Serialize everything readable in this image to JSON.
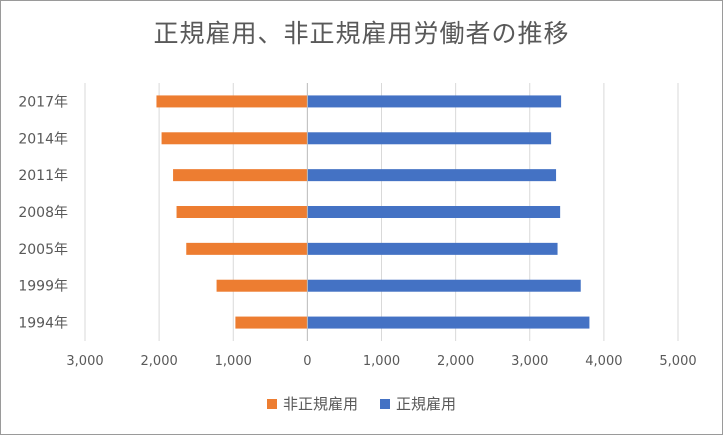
{
  "chart_data": {
    "type": "bar",
    "orientation": "horizontal-diverging",
    "title": "正規雇用、非正規雇用労働者の推移",
    "categories": [
      "2017年",
      "2014年",
      "2011年",
      "2008年",
      "2005年",
      "1999年",
      "1994年"
    ],
    "series": [
      {
        "name": "非正規雇用",
        "color": "#ED7D31",
        "values": [
          2036,
          1967,
          1812,
          1765,
          1634,
          1225,
          971
        ]
      },
      {
        "name": "正規雇用",
        "color": "#4472C4",
        "values": [
          3423,
          3288,
          3355,
          3410,
          3375,
          3688,
          3805
        ]
      }
    ],
    "xlim": [
      -3000,
      5000
    ],
    "x_ticks": [
      -3000,
      -2000,
      -1000,
      0,
      1000,
      2000,
      3000,
      4000,
      5000
    ],
    "x_tick_labels": [
      "3,000",
      "2,000",
      "1,000",
      "0",
      "1,000",
      "2,000",
      "3,000",
      "4,000",
      "5,000"
    ],
    "grid": true,
    "legend": "bottom"
  }
}
